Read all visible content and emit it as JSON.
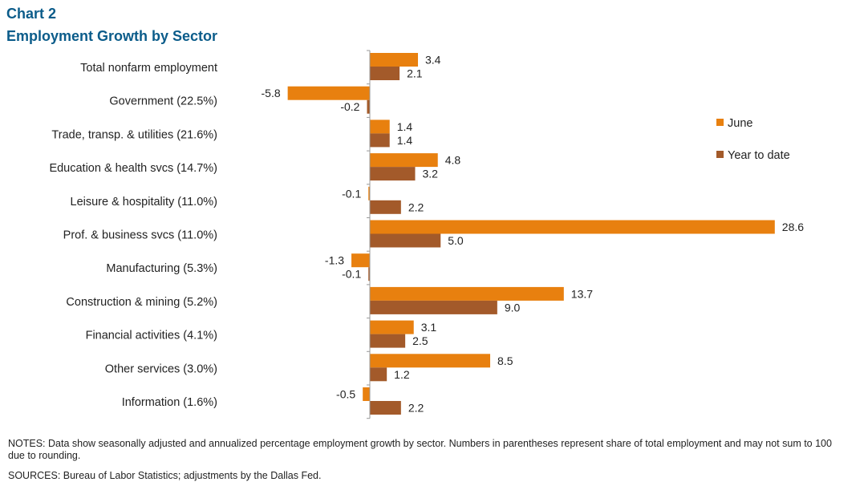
{
  "header": {
    "title": "Chart 2",
    "subtitle": "Employment  Growth by Sector"
  },
  "chart_data": {
    "type": "bar",
    "orientation": "horizontal",
    "categories": [
      "Total nonfarm employment",
      "Government (22.5%)",
      "Trade, transp. & utilities (21.6%)",
      "Education & health svcs (14.7%)",
      "Leisure & hospitality (11.0%)",
      "Prof. & business svcs (11.0%)",
      "Manufacturing (5.3%)",
      "Construction & mining (5.2%)",
      "Financial activities (4.1%)",
      "Other services (3.0%)",
      "Information (1.6%)"
    ],
    "series": [
      {
        "name": "June",
        "color": "#e8800f",
        "values": [
          3.4,
          -5.8,
          1.4,
          4.8,
          -0.1,
          28.6,
          -1.3,
          13.7,
          3.1,
          8.5,
          -0.5
        ]
      },
      {
        "name": "Year to date",
        "color": "#a35a2a",
        "values": [
          2.1,
          -0.2,
          1.4,
          3.2,
          2.2,
          5.0,
          -0.1,
          9.0,
          2.5,
          1.2,
          2.2
        ]
      }
    ],
    "data_labels": [
      [
        "3.4",
        "-5.8",
        "1.4",
        "4.8",
        "-0.1",
        "28.6",
        "-1.3",
        "13.7",
        "3.1",
        "8.5",
        "-0.5"
      ],
      [
        "2.1",
        "-0.2",
        "1.4",
        "3.2",
        "2.2",
        "5.0",
        "-0.1",
        "9.0",
        "2.5",
        "1.2",
        "2.2"
      ]
    ],
    "xlim": [
      -6,
      29
    ],
    "legend_position": "right",
    "grid": false
  },
  "footer": {
    "notes": "NOTES:  Data show seasonally adjusted and annualized percentage employment  growth by sector. Numbers  in parentheses represent share of total employment and may not sum to 100 due to rounding.",
    "sources": "SOURCES:  Bureau of Labor Statistics;  adjustments by the Dallas Fed."
  }
}
